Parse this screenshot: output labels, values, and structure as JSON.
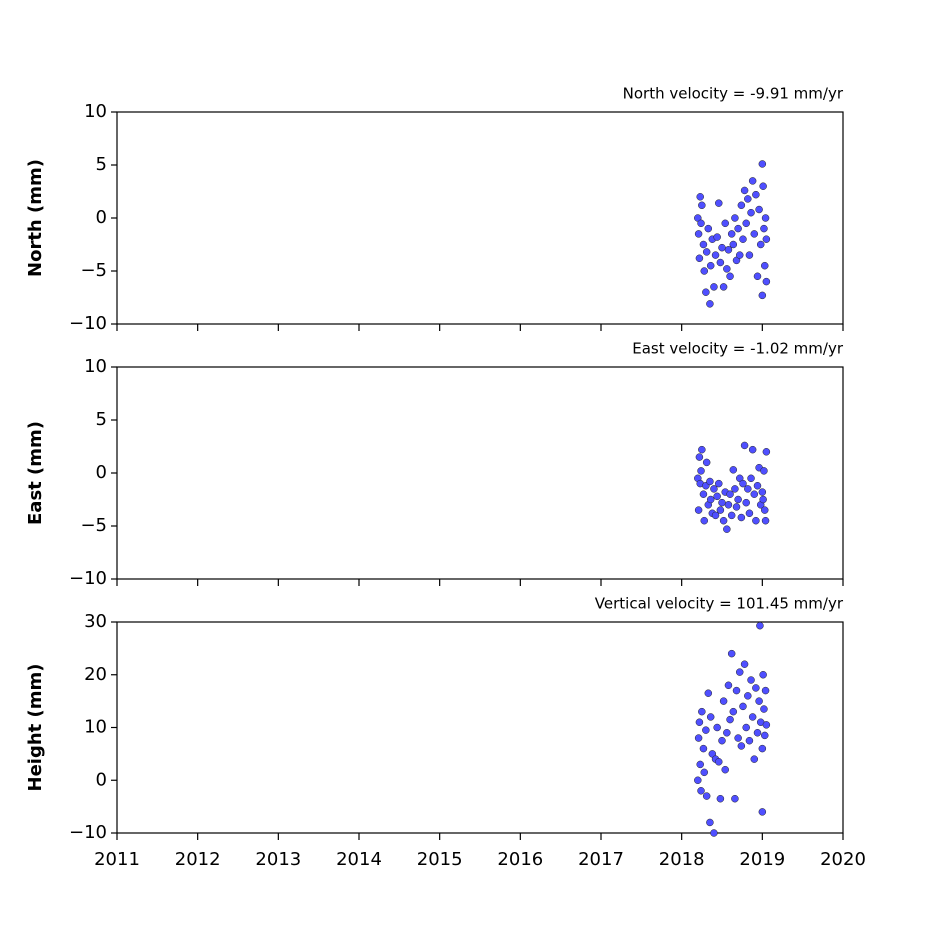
{
  "chart_data": [
    {
      "type": "scatter",
      "title": "North velocity = -9.91 mm/yr",
      "y_label": "North (mm)",
      "color": "#4f4fff",
      "xlim": [
        2011,
        2020
      ],
      "ylim": [
        -10,
        10
      ],
      "yticks": [
        {
          "value": -10,
          "label": "−10"
        },
        {
          "value": -5,
          "label": "−5"
        },
        0,
        5,
        10
      ],
      "x": [
        2018.2,
        2018.21,
        2018.22,
        2018.23,
        2018.24,
        2018.25,
        2018.27,
        2018.28,
        2018.3,
        2018.31,
        2018.33,
        2018.35,
        2018.36,
        2018.38,
        2018.4,
        2018.42,
        2018.44,
        2018.46,
        2018.48,
        2018.5,
        2018.52,
        2018.54,
        2018.56,
        2018.58,
        2018.6,
        2018.62,
        2018.64,
        2018.66,
        2018.68,
        2018.7,
        2018.72,
        2018.74,
        2018.76,
        2018.78,
        2018.8,
        2018.82,
        2018.84,
        2018.86,
        2018.88,
        2018.9,
        2018.92,
        2018.94,
        2018.96,
        2018.98,
        2019.0,
        2019.0,
        2019.01,
        2019.02,
        2019.03,
        2019.04,
        2019.05,
        2019.05
      ],
      "values": [
        0.0,
        -1.5,
        -3.8,
        2.0,
        -0.5,
        1.2,
        -2.5,
        -5.0,
        -7.0,
        -3.2,
        -1.0,
        -8.1,
        -4.5,
        -2.0,
        -6.5,
        -3.5,
        -1.8,
        1.4,
        -4.2,
        -2.8,
        -6.5,
        -0.5,
        -4.8,
        -3.0,
        -5.5,
        -1.5,
        -2.5,
        0.0,
        -4.0,
        -1.0,
        -3.5,
        1.2,
        -2.0,
        2.6,
        -0.5,
        1.8,
        -3.5,
        0.5,
        3.5,
        -1.5,
        2.2,
        -5.5,
        0.8,
        -2.5,
        5.1,
        -7.3,
        3.0,
        -1.0,
        -4.5,
        0.0,
        -6.0,
        -2.0
      ]
    },
    {
      "type": "scatter",
      "title": "East velocity = -1.02 mm/yr",
      "y_label": "East (mm)",
      "color": "#4f4fff",
      "xlim": [
        2011,
        2020
      ],
      "ylim": [
        -10,
        10
      ],
      "yticks": [
        {
          "value": -10,
          "label": "−10"
        },
        {
          "value": -5,
          "label": "−5"
        },
        0,
        5,
        10
      ],
      "x": [
        2018.2,
        2018.21,
        2018.22,
        2018.23,
        2018.24,
        2018.25,
        2018.27,
        2018.28,
        2018.3,
        2018.31,
        2018.33,
        2018.35,
        2018.36,
        2018.38,
        2018.4,
        2018.42,
        2018.44,
        2018.46,
        2018.48,
        2018.5,
        2018.52,
        2018.54,
        2018.56,
        2018.58,
        2018.6,
        2018.62,
        2018.64,
        2018.66,
        2018.68,
        2018.7,
        2018.72,
        2018.74,
        2018.76,
        2018.78,
        2018.8,
        2018.82,
        2018.84,
        2018.86,
        2018.88,
        2018.9,
        2018.92,
        2018.94,
        2018.96,
        2018.98,
        2019.0,
        2019.01,
        2019.02,
        2019.03,
        2019.04,
        2019.05
      ],
      "values": [
        -0.5,
        -3.5,
        1.5,
        -1.0,
        0.2,
        2.2,
        -2.0,
        -4.5,
        -1.2,
        1.0,
        -3.0,
        -0.8,
        -2.5,
        -3.8,
        -1.5,
        -4.0,
        -2.2,
        -1.0,
        -3.5,
        -2.8,
        -4.5,
        -1.8,
        -5.3,
        -3.0,
        -2.0,
        -4.0,
        0.3,
        -1.5,
        -3.2,
        -2.5,
        -0.5,
        -4.2,
        -1.0,
        2.6,
        -2.8,
        -1.5,
        -3.8,
        -0.5,
        2.2,
        -2.0,
        -4.5,
        -1.2,
        0.5,
        -3.0,
        -1.8,
        -2.5,
        0.2,
        -3.5,
        -4.5,
        2.0
      ]
    },
    {
      "type": "scatter",
      "title": "Vertical velocity = 101.45 mm/yr",
      "y_label": "Height (mm)",
      "color": "#4f4fff",
      "xlim": [
        2011,
        2020
      ],
      "ylim": [
        -10,
        30
      ],
      "xticks": [
        2011,
        2012,
        2013,
        2014,
        2015,
        2016,
        2017,
        2018,
        2019,
        2020
      ],
      "yticks": [
        {
          "value": -10,
          "label": "−10"
        },
        0,
        10,
        20,
        30
      ],
      "x": [
        2018.2,
        2018.21,
        2018.22,
        2018.23,
        2018.24,
        2018.25,
        2018.27,
        2018.28,
        2018.3,
        2018.31,
        2018.33,
        2018.35,
        2018.36,
        2018.38,
        2018.4,
        2018.42,
        2018.44,
        2018.46,
        2018.48,
        2018.5,
        2018.52,
        2018.54,
        2018.56,
        2018.58,
        2018.6,
        2018.62,
        2018.64,
        2018.66,
        2018.68,
        2018.7,
        2018.72,
        2018.74,
        2018.76,
        2018.78,
        2018.8,
        2018.82,
        2018.84,
        2018.86,
        2018.88,
        2018.9,
        2018.92,
        2018.94,
        2018.96,
        2018.97,
        2018.98,
        2019.0,
        2019.0,
        2019.01,
        2019.02,
        2019.03,
        2019.04,
        2019.05
      ],
      "values": [
        0.0,
        8.0,
        11.0,
        3.0,
        -2.0,
        13.0,
        6.0,
        1.5,
        9.5,
        -3.0,
        16.5,
        -8.0,
        12.0,
        5.0,
        -10.0,
        4.0,
        10.0,
        3.5,
        -3.5,
        7.5,
        15.0,
        2.0,
        9.0,
        18.0,
        11.5,
        24.0,
        13.0,
        -3.5,
        17.0,
        8.0,
        20.5,
        6.5,
        14.0,
        22.0,
        10.0,
        16.0,
        7.5,
        19.0,
        12.0,
        4.0,
        17.5,
        9.0,
        15.0,
        29.3,
        11.0,
        -6.0,
        6.0,
        20.0,
        13.5,
        8.5,
        17.0,
        10.5
      ]
    }
  ]
}
